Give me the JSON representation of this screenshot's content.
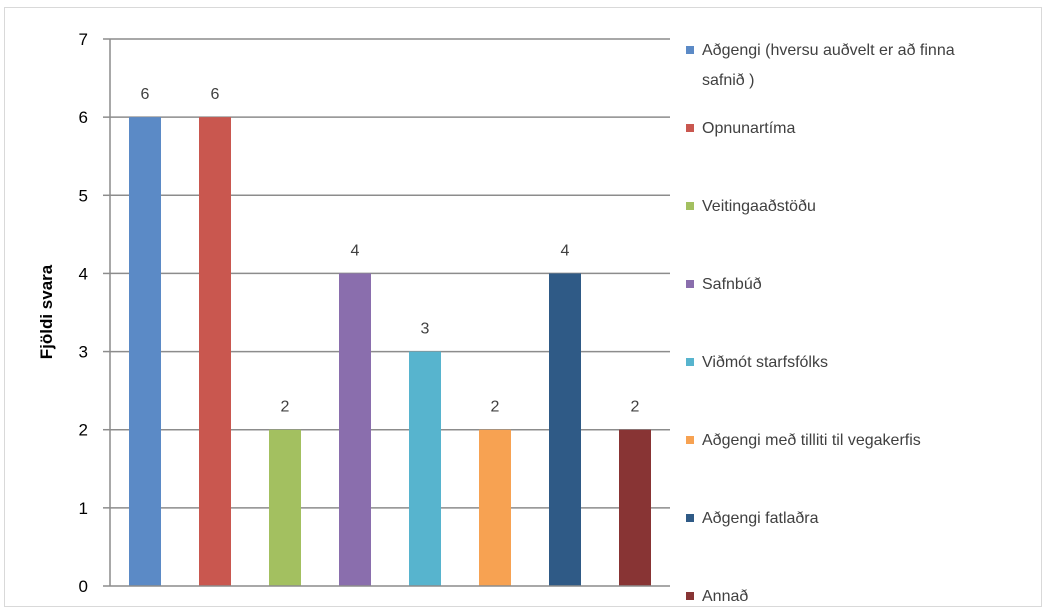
{
  "chart_data": {
    "type": "bar",
    "title": "",
    "xlabel": "",
    "ylabel": "Fjöldi svara",
    "ylim": [
      0,
      7
    ],
    "yticks": [
      0,
      1,
      2,
      3,
      4,
      5,
      6,
      7
    ],
    "grid": true,
    "legend_position": "right",
    "series": [
      {
        "name": "Aðgengi (hversu auðvelt er að finna safnið )",
        "legend_lines": [
          "Aðgengi (hversu auðvelt er að finna",
          "safnið )"
        ],
        "value": 6,
        "color": "#5B8AC6"
      },
      {
        "name": "Opnunartíma",
        "legend_lines": [
          "Opnunartíma"
        ],
        "value": 6,
        "color": "#C9574F"
      },
      {
        "name": "Veitingaaðstöðu",
        "legend_lines": [
          "Veitingaaðstöðu"
        ],
        "value": 2,
        "color": "#A3C060"
      },
      {
        "name": "Safnbúð",
        "legend_lines": [
          "Safnbúð"
        ],
        "value": 4,
        "color": "#8A6EAD"
      },
      {
        "name": "Viðmót starfsfólks",
        "legend_lines": [
          "Viðmót starfsfólks"
        ],
        "value": 3,
        "color": "#57B4CE"
      },
      {
        "name": "Aðgengi með tilliti til vegakerfis",
        "legend_lines": [
          "Aðgengi með tilliti til vegakerfis"
        ],
        "value": 2,
        "color": "#F7A252"
      },
      {
        "name": "Aðgengi fatlaðra",
        "legend_lines": [
          "Aðgengi fatlaðra"
        ],
        "value": 4,
        "color": "#2F5A86"
      },
      {
        "name": "Annað",
        "legend_lines": [
          "Annað"
        ],
        "value": 2,
        "color": "#883434"
      }
    ]
  }
}
